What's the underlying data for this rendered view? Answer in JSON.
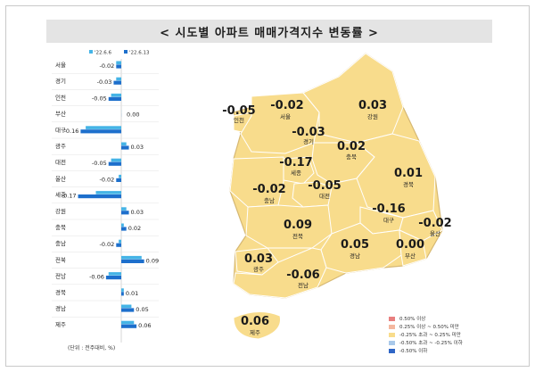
{
  "title": "< 시도별 아파트 매매가격지수 변동률 >",
  "unit_note": "(단위 : 전주대비, %)",
  "colors": {
    "series_prev": "#45b4e6",
    "series_curr": "#1d6fcc",
    "map_fill": "#f8dc8c",
    "map_stroke": "#ffffff",
    "map_outline": "#d6b873",
    "title_bg": "#e4e4e4"
  },
  "chart_data": {
    "type": "bar",
    "orientation": "horizontal",
    "categories": [
      "서울",
      "경기",
      "인천",
      "부산",
      "대구",
      "광주",
      "대전",
      "울산",
      "세종",
      "강원",
      "충북",
      "충남",
      "전북",
      "전남",
      "경북",
      "경남",
      "제주"
    ],
    "series": [
      {
        "name": "'22.6.6",
        "values": [
          -0.02,
          -0.02,
          -0.04,
          0.0,
          -0.14,
          0.02,
          -0.04,
          -0.01,
          -0.1,
          0.02,
          0.01,
          -0.01,
          0.08,
          -0.05,
          0.01,
          0.04,
          0.05
        ]
      },
      {
        "name": "'22.6.13",
        "values": [
          -0.02,
          -0.03,
          -0.05,
          0.0,
          -0.16,
          0.03,
          -0.05,
          -0.02,
          -0.17,
          0.03,
          0.02,
          -0.02,
          0.09,
          -0.06,
          0.01,
          0.05,
          0.06
        ]
      }
    ],
    "value_labels": [
      "-0.02",
      "-0.03",
      "-0.05",
      "0.00",
      "-0.16",
      "0.03",
      "-0.05",
      "-0.02",
      "-0.17",
      "0.03",
      "0.02",
      "-0.02",
      "0.09",
      "-0.06",
      "0.01",
      "0.05",
      "0.06"
    ],
    "grid": false,
    "legend_position": "top"
  },
  "map": {
    "regions": [
      {
        "name": "인천",
        "value": "-0.05"
      },
      {
        "name": "서울",
        "value": "-0.02"
      },
      {
        "name": "강원",
        "value": "0.03"
      },
      {
        "name": "경기",
        "value": "-0.03"
      },
      {
        "name": "충북",
        "value": "0.02"
      },
      {
        "name": "세종",
        "value": "-0.17"
      },
      {
        "name": "경북",
        "value": "0.01"
      },
      {
        "name": "충남",
        "value": "-0.02"
      },
      {
        "name": "대전",
        "value": "-0.05"
      },
      {
        "name": "대구",
        "value": "-0.16"
      },
      {
        "name": "울산",
        "value": "-0.02"
      },
      {
        "name": "전북",
        "value": "0.09"
      },
      {
        "name": "경남",
        "value": "0.05"
      },
      {
        "name": "부산",
        "value": "0.00"
      },
      {
        "name": "광주",
        "value": "0.03"
      },
      {
        "name": "전남",
        "value": "-0.06"
      },
      {
        "name": "제주",
        "value": "0.06"
      }
    ]
  },
  "legend": [
    {
      "label": "0.50% 이상",
      "color": "#e87f7f"
    },
    {
      "label": "0.25% 이상 ~ 0.50% 미만",
      "color": "#f4b79f"
    },
    {
      "label": "-0.25% 초과 ~ 0.25% 미만",
      "color": "#f8dc8c"
    },
    {
      "label": "-0.50% 초과 ~ -0.25% 이하",
      "color": "#a9c9ea"
    },
    {
      "label": "-0.50% 이하",
      "color": "#2f66c6"
    }
  ]
}
